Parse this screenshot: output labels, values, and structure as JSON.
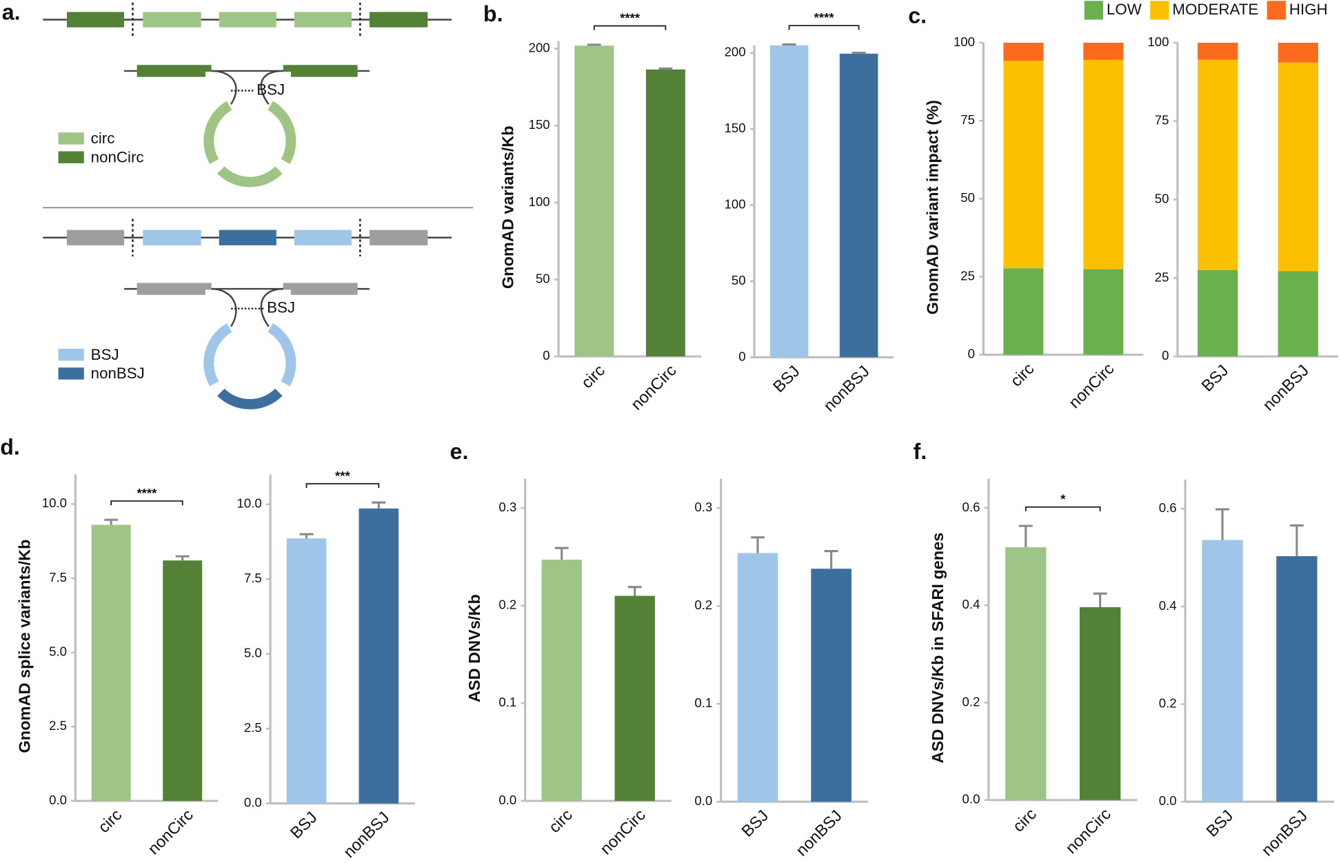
{
  "diagram": {
    "label": "a.",
    "top": {
      "junction": "BSJ",
      "legend": [
        "circ",
        "nonCirc"
      ]
    },
    "bottom": {
      "junction": "BSJ",
      "legend": [
        "BSJ",
        "nonBSJ"
      ]
    }
  },
  "chart_data": [
    {
      "type": "bar",
      "panel_label": "b.",
      "ylabel": "GnomAD variants/Kb",
      "categories": [
        "circ",
        "nonCirc"
      ],
      "values": [
        202,
        186.5
      ],
      "errors": [
        0.6,
        0.6
      ],
      "colors": [
        "#9fc586",
        "#538135"
      ],
      "ylim": [
        0,
        205
      ],
      "yticks": [
        0,
        50,
        100,
        150,
        200
      ],
      "significance": "****"
    },
    {
      "type": "bar",
      "categories": [
        "BSJ",
        "nonBSJ"
      ],
      "values": [
        205,
        199.5
      ],
      "errors": [
        0.6,
        0.6
      ],
      "colors": [
        "#9fc5e8",
        "#3d6f9e"
      ],
      "ylim": [
        0,
        205
      ],
      "yticks": [
        0,
        50,
        100,
        150,
        200
      ],
      "significance": "****"
    },
    {
      "type": "stacked_bar",
      "panel_label": "c.",
      "ylabel": "GnomAD variant impact (%)",
      "categories": [
        "circ",
        "nonCirc"
      ],
      "legend": "top",
      "series": [
        {
          "name": "LOW",
          "color": "#6ab04c",
          "values": [
            27.7,
            27.4
          ]
        },
        {
          "name": "MODERATE",
          "color": "#fcc000",
          "values": [
            66.5,
            67.1
          ]
        },
        {
          "name": "HIGH",
          "color": "#fc6a1e",
          "values": [
            5.8,
            5.5
          ]
        }
      ],
      "ylim": [
        0,
        100
      ],
      "yticks": [
        0,
        25,
        50,
        75,
        100
      ]
    },
    {
      "type": "stacked_bar",
      "categories": [
        "BSJ",
        "nonBSJ"
      ],
      "series": [
        {
          "name": "LOW",
          "color": "#6ab04c",
          "values": [
            27.5,
            27.2
          ]
        },
        {
          "name": "MODERATE",
          "color": "#fcc000",
          "values": [
            67.1,
            66.5
          ]
        },
        {
          "name": "HIGH",
          "color": "#fc6a1e",
          "values": [
            5.4,
            6.3
          ]
        }
      ],
      "ylim": [
        0,
        100
      ],
      "yticks": [
        0,
        25,
        50,
        75,
        100
      ]
    },
    {
      "type": "bar",
      "panel_label": "d.",
      "ylabel": "GnomAD splice variants/Kb",
      "categories": [
        "circ",
        "nonCirc"
      ],
      "values": [
        9.3,
        8.1
      ],
      "errors": [
        0.17,
        0.14
      ],
      "colors": [
        "#9fc586",
        "#538135"
      ],
      "ylim": [
        0,
        11
      ],
      "yticks": [
        {
          "value": 0,
          "label": "0.0"
        },
        {
          "value": 2.5,
          "label": "2.5"
        },
        {
          "value": 5,
          "label": "5.0"
        },
        {
          "value": 7.5,
          "label": "7.5"
        },
        {
          "value": 10,
          "label": "10.0"
        }
      ],
      "significance": "****"
    },
    {
      "type": "bar",
      "categories": [
        "BSJ",
        "nonBSJ"
      ],
      "values": [
        8.86,
        9.86
      ],
      "errors": [
        0.14,
        0.2
      ],
      "colors": [
        "#9fc5e8",
        "#3d6f9e"
      ],
      "ylim": [
        0,
        11
      ],
      "yticks": [
        {
          "value": 0,
          "label": "0.0"
        },
        {
          "value": 2.5,
          "label": "2.5"
        },
        {
          "value": 5,
          "label": "5.0"
        },
        {
          "value": 7.5,
          "label": "7.5"
        },
        {
          "value": 10,
          "label": "10.0"
        }
      ],
      "significance": "***"
    },
    {
      "type": "bar",
      "panel_label": "e.",
      "ylabel": "ASD DNVs/Kb",
      "categories": [
        "circ",
        "nonCirc"
      ],
      "values": [
        0.247,
        0.21
      ],
      "errors": [
        0.012,
        0.009
      ],
      "colors": [
        "#9fc586",
        "#538135"
      ],
      "ylim": [
        0,
        0.33
      ],
      "yticks": [
        {
          "value": 0,
          "label": "0.0"
        },
        0.1,
        0.2,
        0.3
      ]
    },
    {
      "type": "bar",
      "categories": [
        "BSJ",
        "nonBSJ"
      ],
      "values": [
        0.254,
        0.238
      ],
      "errors": [
        0.016,
        0.018
      ],
      "colors": [
        "#9fc5e8",
        "#3d6f9e"
      ],
      "ylim": [
        0,
        0.33
      ],
      "yticks": [
        {
          "value": 0,
          "label": "0.0"
        },
        0.1,
        0.2,
        0.3
      ]
    },
    {
      "type": "bar",
      "panel_label": "f.",
      "ylabel": "ASD DNVs/Kb in SFARI genes",
      "categories": [
        "circ",
        "nonCirc"
      ],
      "values": [
        0.519,
        0.396
      ],
      "errors": [
        0.044,
        0.028
      ],
      "colors": [
        "#9fc586",
        "#538135"
      ],
      "ylim": [
        0,
        0.66
      ],
      "yticks": [
        {
          "value": 0,
          "label": "0.0"
        },
        0.2,
        0.4,
        0.6
      ],
      "significance": "*"
    },
    {
      "type": "bar",
      "categories": [
        "BSJ",
        "nonBSJ"
      ],
      "values": [
        0.536,
        0.503
      ],
      "errors": [
        0.063,
        0.063
      ],
      "colors": [
        "#9fc5e8",
        "#3d6f9e"
      ],
      "ylim": [
        0,
        0.66
      ],
      "yticks": [
        {
          "value": 0,
          "label": "0.0"
        },
        0.2,
        0.4,
        0.6
      ]
    }
  ]
}
